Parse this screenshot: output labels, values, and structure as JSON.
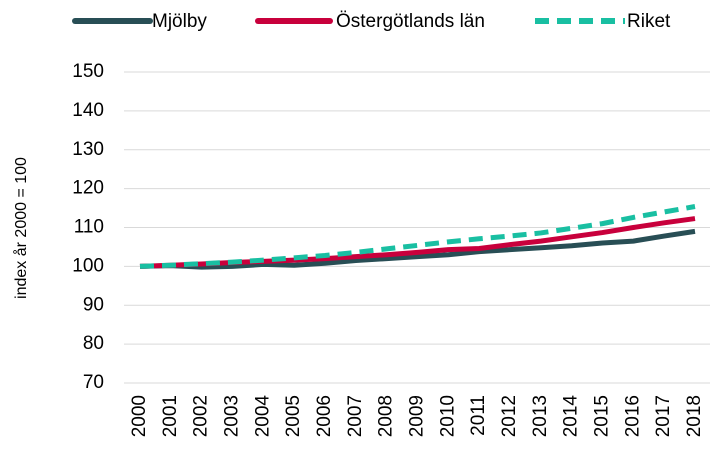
{
  "chart_data": {
    "type": "line",
    "y_label": "index år 2000 = 100",
    "categories": [
      "2000",
      "2001",
      "2002",
      "2003",
      "2004",
      "2005",
      "2006",
      "2007",
      "2008",
      "2009",
      "2010",
      "2011",
      "2012",
      "2013",
      "2014",
      "2015",
      "2016",
      "2017",
      "2018"
    ],
    "series": [
      {
        "name": "Mjölby",
        "color": "#284e55",
        "dashed": false,
        "values": [
          100,
          100.2,
          99.8,
          100,
          100.5,
          100.3,
          100.8,
          101.5,
          102,
          102.5,
          103,
          103.8,
          104.3,
          104.8,
          105.3,
          106,
          106.5,
          107.8,
          109
        ]
      },
      {
        "name": "Östergötlands län",
        "color": "#c8003c",
        "dashed": false,
        "values": [
          100,
          100.3,
          100.6,
          101,
          101.3,
          101.6,
          102,
          102.5,
          103,
          103.6,
          104.3,
          104.6,
          105.6,
          106.5,
          107.6,
          108.7,
          110,
          111.2,
          112.3
        ]
      },
      {
        "name": "Riket",
        "color": "#19bfa2",
        "dashed": true,
        "values": [
          100,
          100.3,
          100.7,
          101.1,
          101.6,
          102.2,
          102.8,
          103.6,
          104.5,
          105.4,
          106.3,
          107.1,
          107.8,
          108.6,
          109.8,
          111,
          112.6,
          114,
          115.4
        ]
      }
    ],
    "ylim": [
      70,
      150
    ],
    "yticks": [
      70,
      80,
      90,
      100,
      110,
      120,
      130,
      140,
      150
    ],
    "grid": true,
    "legend": "top"
  }
}
